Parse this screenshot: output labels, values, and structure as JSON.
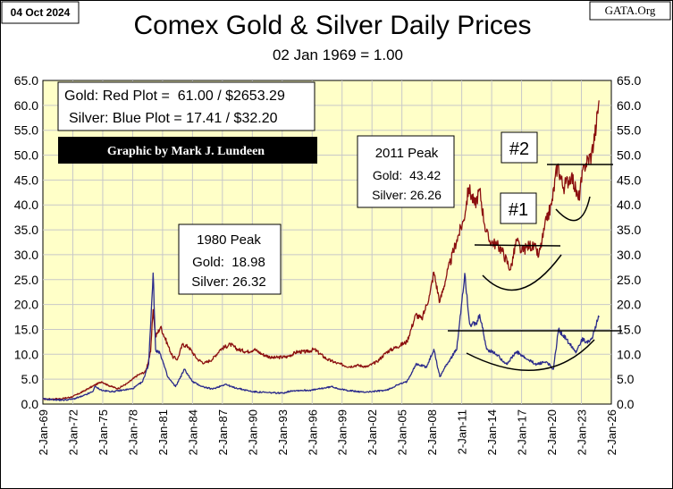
{
  "header": {
    "date": "04 Oct 2024",
    "title": "Comex Gold & Silver Daily Prices",
    "subtitle": "02 Jan 1969 = 1.00",
    "source": "GATA.Org"
  },
  "legend": {
    "gold_line": "Gold: Red Plot =  61.00 / $2653.29",
    "silver_line": "Silver: Blue Plot = 17.41 / $32.20",
    "credit": "Graphic by Mark J. Lundeen"
  },
  "annotations": {
    "peak1980": {
      "title": "1980 Peak",
      "gold": "Gold:  18.98",
      "silver": "Silver: 26.32"
    },
    "peak2011": {
      "title": "2011 Peak",
      "gold": "Gold:  43.42",
      "silver": "Silver: 26.26"
    },
    "marker1": "#1",
    "marker2": "#2"
  },
  "colors": {
    "gold": "#8b0f0f",
    "silver": "#2b2b8c",
    "plot_bg": "#ffffc8",
    "grid": "#c8c8c8"
  },
  "chart_data": {
    "type": "line",
    "ylim": [
      0,
      65
    ],
    "yticks": [
      "0.0",
      "5.0",
      "10.0",
      "15.0",
      "20.0",
      "25.0",
      "30.0",
      "35.0",
      "40.0",
      "45.0",
      "50.0",
      "55.0",
      "60.0",
      "65.0"
    ],
    "xticks": [
      "2-Jan-69",
      "2-Jan-72",
      "2-Jan-75",
      "2-Jan-78",
      "2-Jan-81",
      "2-Jan-84",
      "2-Jan-87",
      "2-Jan-90",
      "2-Jan-93",
      "2-Jan-96",
      "2-Jan-99",
      "2-Jan-02",
      "2-Jan-05",
      "2-Jan-08",
      "2-Jan-11",
      "2-Jan-14",
      "2-Jan-17",
      "2-Jan-20",
      "2-Jan-23",
      "2-Jan-26"
    ],
    "xlim": [
      1969.0,
      2026.0
    ],
    "grid": true,
    "series": [
      {
        "key": "gold",
        "points": [
          [
            1969.0,
            1.0
          ],
          [
            1970.0,
            1.0
          ],
          [
            1971.0,
            1.1
          ],
          [
            1972.0,
            1.5
          ],
          [
            1973.0,
            2.5
          ],
          [
            1974.0,
            3.6
          ],
          [
            1974.9,
            4.5
          ],
          [
            1975.5,
            3.8
          ],
          [
            1976.5,
            3.1
          ],
          [
            1977.5,
            4.2
          ],
          [
            1978.5,
            5.8
          ],
          [
            1979.3,
            6.5
          ],
          [
            1979.8,
            10.5
          ],
          [
            1980.05,
            18.98
          ],
          [
            1980.3,
            13.5
          ],
          [
            1980.8,
            15.5
          ],
          [
            1981.5,
            12.0
          ],
          [
            1982.0,
            9.5
          ],
          [
            1982.5,
            9.0
          ],
          [
            1983.0,
            12.0
          ],
          [
            1983.6,
            11.5
          ],
          [
            1984.5,
            9.0
          ],
          [
            1985.2,
            8.2
          ],
          [
            1986.0,
            9.0
          ],
          [
            1986.8,
            11.0
          ],
          [
            1987.8,
            12.0
          ],
          [
            1988.5,
            11.0
          ],
          [
            1989.5,
            10.5
          ],
          [
            1990.2,
            11.0
          ],
          [
            1991.0,
            10.0
          ],
          [
            1992.0,
            9.3
          ],
          [
            1993.5,
            9.5
          ],
          [
            1994.5,
            10.5
          ],
          [
            1995.5,
            10.5
          ],
          [
            1996.2,
            11.0
          ],
          [
            1997.5,
            9.0
          ],
          [
            1998.5,
            8.2
          ],
          [
            1999.7,
            7.5
          ],
          [
            2000.5,
            7.8
          ],
          [
            2001.5,
            7.5
          ],
          [
            2002.5,
            8.5
          ],
          [
            2003.5,
            10.5
          ],
          [
            2004.5,
            11.5
          ],
          [
            2005.5,
            12.5
          ],
          [
            2006.4,
            18.0
          ],
          [
            2007.0,
            17.0
          ],
          [
            2007.8,
            22.0
          ],
          [
            2008.2,
            26.5
          ],
          [
            2008.8,
            20.5
          ],
          [
            2009.5,
            26.0
          ],
          [
            2010.5,
            33.0
          ],
          [
            2011.2,
            37.0
          ],
          [
            2011.7,
            43.42
          ],
          [
            2012.3,
            40.0
          ],
          [
            2012.8,
            43.0
          ],
          [
            2013.3,
            36.0
          ],
          [
            2013.7,
            33.0
          ],
          [
            2014.5,
            32.0
          ],
          [
            2015.0,
            31.0
          ],
          [
            2015.9,
            27.0
          ],
          [
            2016.5,
            33.0
          ],
          [
            2017.0,
            30.5
          ],
          [
            2017.8,
            32.0
          ],
          [
            2018.5,
            31.0
          ],
          [
            2018.7,
            29.5
          ],
          [
            2019.5,
            37.0
          ],
          [
            2020.0,
            40.0
          ],
          [
            2020.6,
            48.0
          ],
          [
            2021.2,
            43.5
          ],
          [
            2022.0,
            46.0
          ],
          [
            2022.7,
            41.0
          ],
          [
            2023.3,
            48.0
          ],
          [
            2024.0,
            50.0
          ],
          [
            2024.5,
            56.0
          ],
          [
            2024.76,
            61.0
          ]
        ]
      },
      {
        "key": "silver",
        "points": [
          [
            1969.0,
            1.0
          ],
          [
            1970.0,
            0.9
          ],
          [
            1971.0,
            0.8
          ],
          [
            1972.0,
            1.0
          ],
          [
            1973.0,
            1.6
          ],
          [
            1974.0,
            2.5
          ],
          [
            1974.2,
            3.5
          ],
          [
            1975.0,
            2.7
          ],
          [
            1976.0,
            2.5
          ],
          [
            1977.0,
            2.8
          ],
          [
            1978.0,
            3.1
          ],
          [
            1979.0,
            4.5
          ],
          [
            1979.6,
            8.0
          ],
          [
            1980.05,
            26.32
          ],
          [
            1980.3,
            11.0
          ],
          [
            1980.8,
            10.0
          ],
          [
            1981.5,
            5.5
          ],
          [
            1982.3,
            3.5
          ],
          [
            1983.2,
            7.0
          ],
          [
            1984.0,
            4.5
          ],
          [
            1985.0,
            3.5
          ],
          [
            1986.0,
            3.0
          ],
          [
            1987.3,
            4.0
          ],
          [
            1988.0,
            3.4
          ],
          [
            1990.0,
            2.5
          ],
          [
            1991.5,
            2.3
          ],
          [
            1993.0,
            2.2
          ],
          [
            1994.0,
            2.7
          ],
          [
            1996.0,
            2.8
          ],
          [
            1998.0,
            3.5
          ],
          [
            1999.0,
            2.9
          ],
          [
            2001.0,
            2.4
          ],
          [
            2002.0,
            2.5
          ],
          [
            2003.5,
            2.8
          ],
          [
            2004.5,
            3.8
          ],
          [
            2005.5,
            4.5
          ],
          [
            2006.4,
            8.0
          ],
          [
            2007.5,
            7.5
          ],
          [
            2008.2,
            11.0
          ],
          [
            2008.8,
            5.5
          ],
          [
            2009.5,
            8.0
          ],
          [
            2010.5,
            11.0
          ],
          [
            2011.3,
            26.26
          ],
          [
            2011.8,
            16.0
          ],
          [
            2012.5,
            16.0
          ],
          [
            2012.8,
            18.0
          ],
          [
            2013.5,
            11.0
          ],
          [
            2014.5,
            10.0
          ],
          [
            2015.5,
            8.0
          ],
          [
            2016.5,
            10.5
          ],
          [
            2017.5,
            9.0
          ],
          [
            2018.5,
            8.0
          ],
          [
            2019.5,
            8.5
          ],
          [
            2020.2,
            7.0
          ],
          [
            2020.7,
            15.0
          ],
          [
            2021.5,
            13.0
          ],
          [
            2022.5,
            10.5
          ],
          [
            2023.0,
            13.0
          ],
          [
            2023.5,
            12.5
          ],
          [
            2024.0,
            13.0
          ],
          [
            2024.5,
            16.0
          ],
          [
            2024.76,
            17.41
          ]
        ]
      }
    ]
  }
}
